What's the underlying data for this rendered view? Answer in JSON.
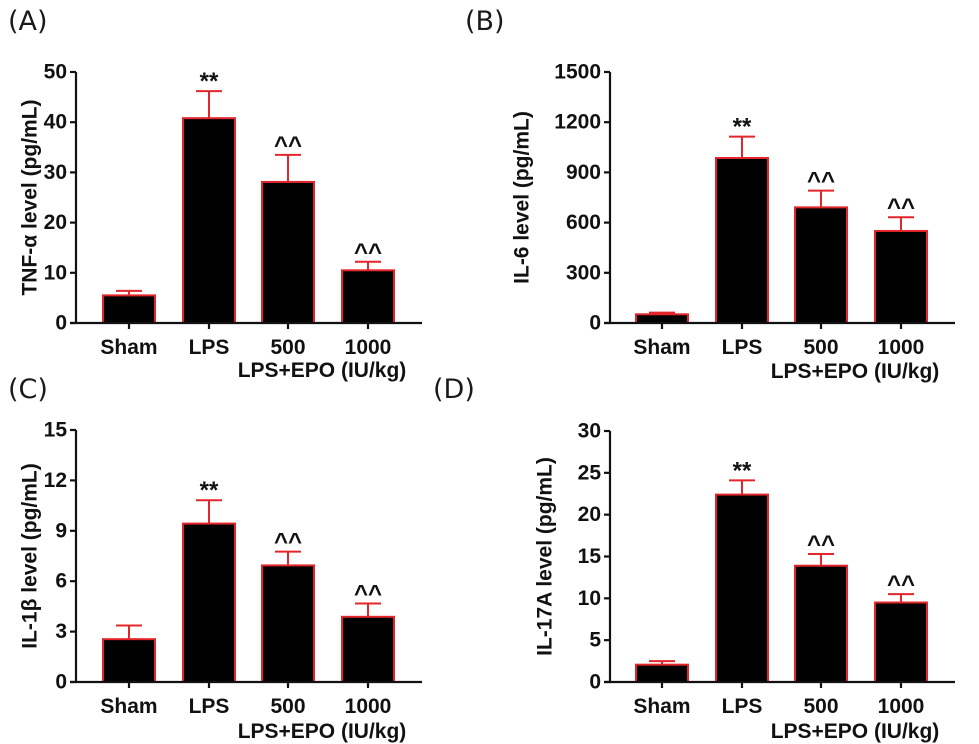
{
  "colors": {
    "bar_fill": "#000000",
    "bar_outline": "#e3262b",
    "error_bar": "#e3262b",
    "axis": "#111111",
    "text": "#111111"
  },
  "chart_data": [
    {
      "panel": "(A)",
      "type": "bar",
      "title": "",
      "ylabel": "TNF-α level (pg/mL)",
      "xlabel": "LPS+EPO (IU/kg)",
      "categories": [
        "Sham",
        "LPS",
        "500",
        "1000"
      ],
      "values": [
        5.5,
        40.8,
        28.1,
        10.5
      ],
      "error_upper": [
        6.4,
        46.2,
        33.5,
        12.2
      ],
      "significance": [
        "",
        "**",
        "^^",
        "^^"
      ],
      "ylim": [
        0,
        50
      ],
      "yticks": [
        0,
        10,
        20,
        30,
        40,
        50
      ],
      "grid": false,
      "legend": "none"
    },
    {
      "panel": "(B)",
      "type": "bar",
      "title": "",
      "ylabel": "IL-6 level (pg/mL)",
      "xlabel": "LPS+EPO (IU/kg)",
      "categories": [
        "Sham",
        "LPS",
        "500",
        "1000"
      ],
      "values": [
        52,
        986,
        691,
        550
      ],
      "error_upper": [
        62,
        1114,
        791,
        632
      ],
      "significance": [
        "",
        "**",
        "^^",
        "^^"
      ],
      "ylim": [
        0,
        1500
      ],
      "yticks": [
        0,
        300,
        600,
        900,
        1200,
        1500
      ],
      "grid": false,
      "legend": "none"
    },
    {
      "panel": "(C)",
      "type": "bar",
      "title": "",
      "ylabel": "IL-1β level (pg/mL)",
      "xlabel": "LPS+EPO (IU/kg)",
      "categories": [
        "Sham",
        "LPS",
        "500",
        "1000"
      ],
      "values": [
        2.55,
        9.43,
        6.94,
        3.88
      ],
      "error_upper": [
        3.36,
        10.82,
        7.76,
        4.67
      ],
      "significance": [
        "",
        "**",
        "^^",
        "^^"
      ],
      "ylim": [
        0,
        15
      ],
      "yticks": [
        0,
        3,
        6,
        9,
        12,
        15
      ],
      "grid": false,
      "legend": "none"
    },
    {
      "panel": "(D)",
      "type": "bar",
      "title": "",
      "ylabel": "IL-17A level (pg/mL)",
      "xlabel": "LPS+EPO (IU/kg)",
      "categories": [
        "Sham",
        "LPS",
        "500",
        "1000"
      ],
      "values": [
        2.07,
        22.4,
        13.9,
        9.5
      ],
      "error_upper": [
        2.5,
        24.1,
        15.3,
        10.5
      ],
      "significance": [
        "",
        "**",
        "^^",
        "^^"
      ],
      "ylim": [
        0,
        30
      ],
      "yticks": [
        0,
        5,
        10,
        15,
        20,
        25,
        30
      ],
      "grid": false,
      "legend": "none"
    }
  ]
}
